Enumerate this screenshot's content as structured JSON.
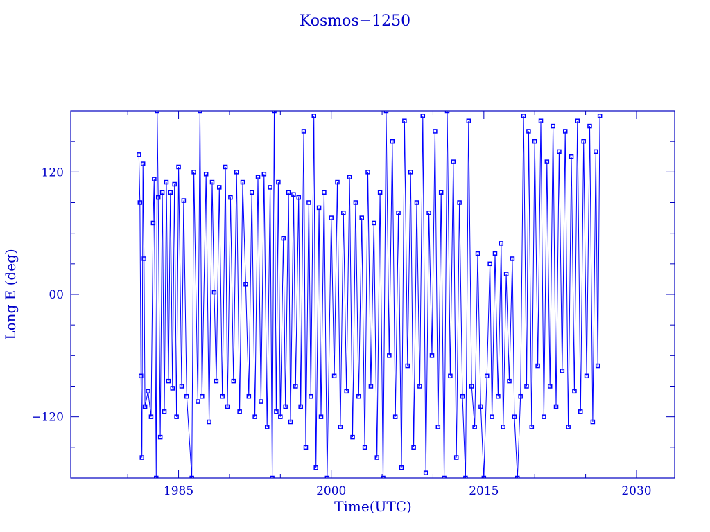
{
  "chart_data": {
    "type": "line",
    "title": "Kosmos−1250",
    "xlabel": "Time(UTC)",
    "ylabel": "Long E (deg)",
    "xlim": [
      1974.4,
      2033.75
    ],
    "ylim": [
      -180,
      180
    ],
    "xticks": [
      1985,
      2000,
      2015,
      2030
    ],
    "xtick_labels": [
      "1985",
      "2000",
      "2015",
      "2030"
    ],
    "yticks": [
      120,
      0,
      -120
    ],
    "ytick_labels": [
      "120",
      "00",
      "−120"
    ],
    "grid": false,
    "marker": "square",
    "colors": {
      "data": "#0000ff",
      "frame": "#0000c0",
      "text": "#0000c8"
    },
    "series": [
      {
        "points": [
          [
            1981.1,
            137
          ],
          [
            1981.2,
            90
          ],
          [
            1981.3,
            -80
          ],
          [
            1981.4,
            -160
          ],
          [
            1981.5,
            128
          ],
          [
            1981.6,
            35
          ],
          [
            1981.7,
            -110
          ],
          [
            1982.0,
            -95
          ],
          [
            1982.3,
            -120
          ],
          [
            1982.5,
            70
          ],
          [
            1982.6,
            113
          ],
          [
            1982.8,
            -180
          ],
          [
            1982.9,
            180
          ],
          [
            1983.0,
            95
          ],
          [
            1983.2,
            -140
          ],
          [
            1983.4,
            100
          ],
          [
            1983.6,
            -115
          ],
          [
            1983.8,
            110
          ],
          [
            1984.0,
            -85
          ],
          [
            1984.2,
            100
          ],
          [
            1984.4,
            -92
          ],
          [
            1984.6,
            108
          ],
          [
            1984.8,
            -120
          ],
          [
            1985.0,
            125
          ],
          [
            1985.3,
            -90
          ],
          [
            1985.5,
            92
          ],
          [
            1985.8,
            -100
          ],
          [
            1986.3,
            -180
          ],
          [
            1986.5,
            120
          ],
          [
            1986.9,
            -105
          ],
          [
            1987.1,
            180
          ],
          [
            1987.3,
            -100
          ],
          [
            1987.7,
            118
          ],
          [
            1988.0,
            -125
          ],
          [
            1988.3,
            110
          ],
          [
            1988.5,
            2
          ],
          [
            1988.7,
            -85
          ],
          [
            1989.0,
            105
          ],
          [
            1989.3,
            -100
          ],
          [
            1989.6,
            125
          ],
          [
            1989.8,
            -110
          ],
          [
            1990.1,
            95
          ],
          [
            1990.4,
            -85
          ],
          [
            1990.7,
            120
          ],
          [
            1991.0,
            -115
          ],
          [
            1991.3,
            110
          ],
          [
            1991.6,
            10
          ],
          [
            1991.9,
            -100
          ],
          [
            1992.2,
            100
          ],
          [
            1992.5,
            -120
          ],
          [
            1992.8,
            115
          ],
          [
            1993.1,
            -105
          ],
          [
            1993.4,
            118
          ],
          [
            1993.7,
            -130
          ],
          [
            1994.0,
            105
          ],
          [
            1994.2,
            -180
          ],
          [
            1994.4,
            180
          ],
          [
            1994.6,
            -115
          ],
          [
            1994.8,
            110
          ],
          [
            1995.0,
            -120
          ],
          [
            1995.3,
            55
          ],
          [
            1995.5,
            -110
          ],
          [
            1995.8,
            100
          ],
          [
            1996.0,
            -125
          ],
          [
            1996.3,
            98
          ],
          [
            1996.5,
            -90
          ],
          [
            1996.8,
            95
          ],
          [
            1997.0,
            -110
          ],
          [
            1997.3,
            160
          ],
          [
            1997.5,
            -150
          ],
          [
            1997.8,
            90
          ],
          [
            1998.0,
            -100
          ],
          [
            1998.3,
            175
          ],
          [
            1998.5,
            -170
          ],
          [
            1998.8,
            85
          ],
          [
            1999.0,
            -120
          ],
          [
            1999.3,
            100
          ],
          [
            1999.6,
            -180
          ],
          [
            2000.0,
            75
          ],
          [
            2000.3,
            -80
          ],
          [
            2000.6,
            110
          ],
          [
            2000.9,
            -130
          ],
          [
            2001.2,
            80
          ],
          [
            2001.5,
            -95
          ],
          [
            2001.8,
            115
          ],
          [
            2002.1,
            -140
          ],
          [
            2002.4,
            90
          ],
          [
            2002.7,
            -100
          ],
          [
            2003.0,
            75
          ],
          [
            2003.3,
            -150
          ],
          [
            2003.6,
            120
          ],
          [
            2003.9,
            -90
          ],
          [
            2004.2,
            70
          ],
          [
            2004.5,
            -160
          ],
          [
            2004.8,
            100
          ],
          [
            2005.1,
            -180
          ],
          [
            2005.4,
            180
          ],
          [
            2005.7,
            -60
          ],
          [
            2006.0,
            150
          ],
          [
            2006.3,
            -120
          ],
          [
            2006.6,
            80
          ],
          [
            2006.9,
            -170
          ],
          [
            2007.2,
            170
          ],
          [
            2007.5,
            -70
          ],
          [
            2007.8,
            120
          ],
          [
            2008.1,
            -150
          ],
          [
            2008.4,
            90
          ],
          [
            2008.7,
            -90
          ],
          [
            2009.0,
            175
          ],
          [
            2009.3,
            -175
          ],
          [
            2009.6,
            80
          ],
          [
            2009.9,
            -60
          ],
          [
            2010.2,
            160
          ],
          [
            2010.5,
            -130
          ],
          [
            2010.8,
            100
          ],
          [
            2011.1,
            -180
          ],
          [
            2011.4,
            180
          ],
          [
            2011.7,
            -80
          ],
          [
            2012.0,
            130
          ],
          [
            2012.3,
            -160
          ],
          [
            2012.6,
            90
          ],
          [
            2012.9,
            -100
          ],
          [
            2013.2,
            -180
          ],
          [
            2013.5,
            170
          ],
          [
            2013.8,
            -90
          ],
          [
            2014.1,
            -130
          ],
          [
            2014.4,
            40
          ],
          [
            2014.7,
            -110
          ],
          [
            2015.0,
            -180
          ],
          [
            2015.3,
            -80
          ],
          [
            2015.6,
            30
          ],
          [
            2015.8,
            -120
          ],
          [
            2016.1,
            40
          ],
          [
            2016.4,
            -100
          ],
          [
            2016.7,
            50
          ],
          [
            2016.9,
            -130
          ],
          [
            2017.2,
            20
          ],
          [
            2017.5,
            -85
          ],
          [
            2017.8,
            35
          ],
          [
            2018.0,
            -120
          ],
          [
            2018.3,
            -180
          ],
          [
            2018.6,
            -100
          ],
          [
            2018.9,
            175
          ],
          [
            2019.2,
            -90
          ],
          [
            2019.4,
            160
          ],
          [
            2019.7,
            -130
          ],
          [
            2020.0,
            150
          ],
          [
            2020.3,
            -70
          ],
          [
            2020.6,
            170
          ],
          [
            2020.9,
            -120
          ],
          [
            2021.2,
            130
          ],
          [
            2021.5,
            -90
          ],
          [
            2021.8,
            165
          ],
          [
            2022.1,
            -110
          ],
          [
            2022.4,
            140
          ],
          [
            2022.7,
            -75
          ],
          [
            2023.0,
            160
          ],
          [
            2023.3,
            -130
          ],
          [
            2023.6,
            135
          ],
          [
            2023.9,
            -95
          ],
          [
            2024.2,
            170
          ],
          [
            2024.5,
            -115
          ],
          [
            2024.8,
            150
          ],
          [
            2025.1,
            -80
          ],
          [
            2025.4,
            165
          ],
          [
            2025.7,
            -125
          ],
          [
            2026.0,
            140
          ],
          [
            2026.2,
            -70
          ],
          [
            2026.4,
            175
          ]
        ]
      }
    ]
  }
}
